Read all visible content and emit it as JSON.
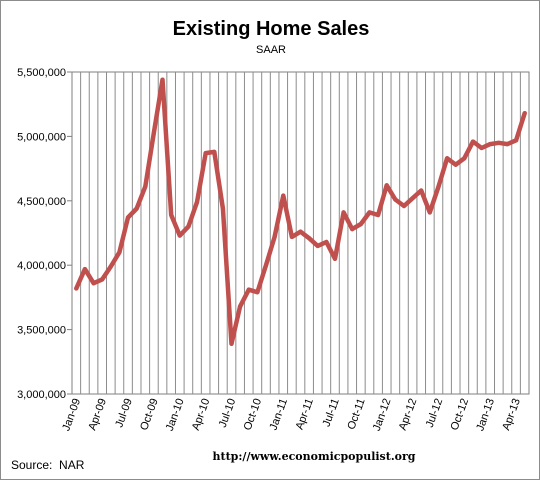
{
  "chart_data": {
    "type": "line",
    "title": "Existing Home Sales",
    "subtitle": "SAAR",
    "xlabel": "",
    "ylabel": "",
    "ylim": [
      3000000,
      5500000
    ],
    "y_ticks": [
      "3,000,000",
      "3,500,000",
      "4,000,000",
      "4,500,000",
      "5,000,000",
      "5,500,000"
    ],
    "x_tick_labels": [
      "Jan-09",
      "Apr-09",
      "Jul-09",
      "Oct-09",
      "Jan-10",
      "Apr-10",
      "Jul-10",
      "Oct-10",
      "Jan-11",
      "Apr-11",
      "Jul-11",
      "Oct-11",
      "Jan-12",
      "Apr-12",
      "Jul-12",
      "Oct-12",
      "Jan-13",
      "Apr-13"
    ],
    "x": [
      "Jan-09",
      "Feb-09",
      "Mar-09",
      "Apr-09",
      "May-09",
      "Jun-09",
      "Jul-09",
      "Aug-09",
      "Sep-09",
      "Oct-09",
      "Nov-09",
      "Dec-09",
      "Jan-10",
      "Feb-10",
      "Mar-10",
      "Apr-10",
      "May-10",
      "Jun-10",
      "Jul-10",
      "Aug-10",
      "Sep-10",
      "Oct-10",
      "Nov-10",
      "Dec-10",
      "Jan-11",
      "Feb-11",
      "Mar-11",
      "Apr-11",
      "May-11",
      "Jun-11",
      "Jul-11",
      "Aug-11",
      "Sep-11",
      "Oct-11",
      "Nov-11",
      "Dec-11",
      "Jan-12",
      "Feb-12",
      "Mar-12",
      "Apr-12",
      "May-12",
      "Jun-12",
      "Jul-12",
      "Aug-12",
      "Sep-12",
      "Oct-12",
      "Nov-12",
      "Dec-12",
      "Jan-13",
      "Feb-13",
      "Mar-13",
      "Apr-13",
      "May-13"
    ],
    "series": [
      {
        "color": "#C0504D",
        "values": [
          3820000,
          3970000,
          3860000,
          3890000,
          3990000,
          4100000,
          4370000,
          4440000,
          4610000,
          5030000,
          5440000,
          4390000,
          4230000,
          4300000,
          4490000,
          4870000,
          4880000,
          4440000,
          3390000,
          3680000,
          3810000,
          3790000,
          4000000,
          4220000,
          4540000,
          4220000,
          4260000,
          4210000,
          4150000,
          4180000,
          4050000,
          4410000,
          4280000,
          4320000,
          4410000,
          4390000,
          4620000,
          4510000,
          4460000,
          4520000,
          4580000,
          4410000,
          4610000,
          4830000,
          4780000,
          4830000,
          4960000,
          4910000,
          4940000,
          4950000,
          4940000,
          4970000,
          5180000
        ]
      }
    ],
    "grid": "vertical",
    "source_note": "Source:  NAR",
    "url_note": "http://www.economicpopulist.org"
  }
}
